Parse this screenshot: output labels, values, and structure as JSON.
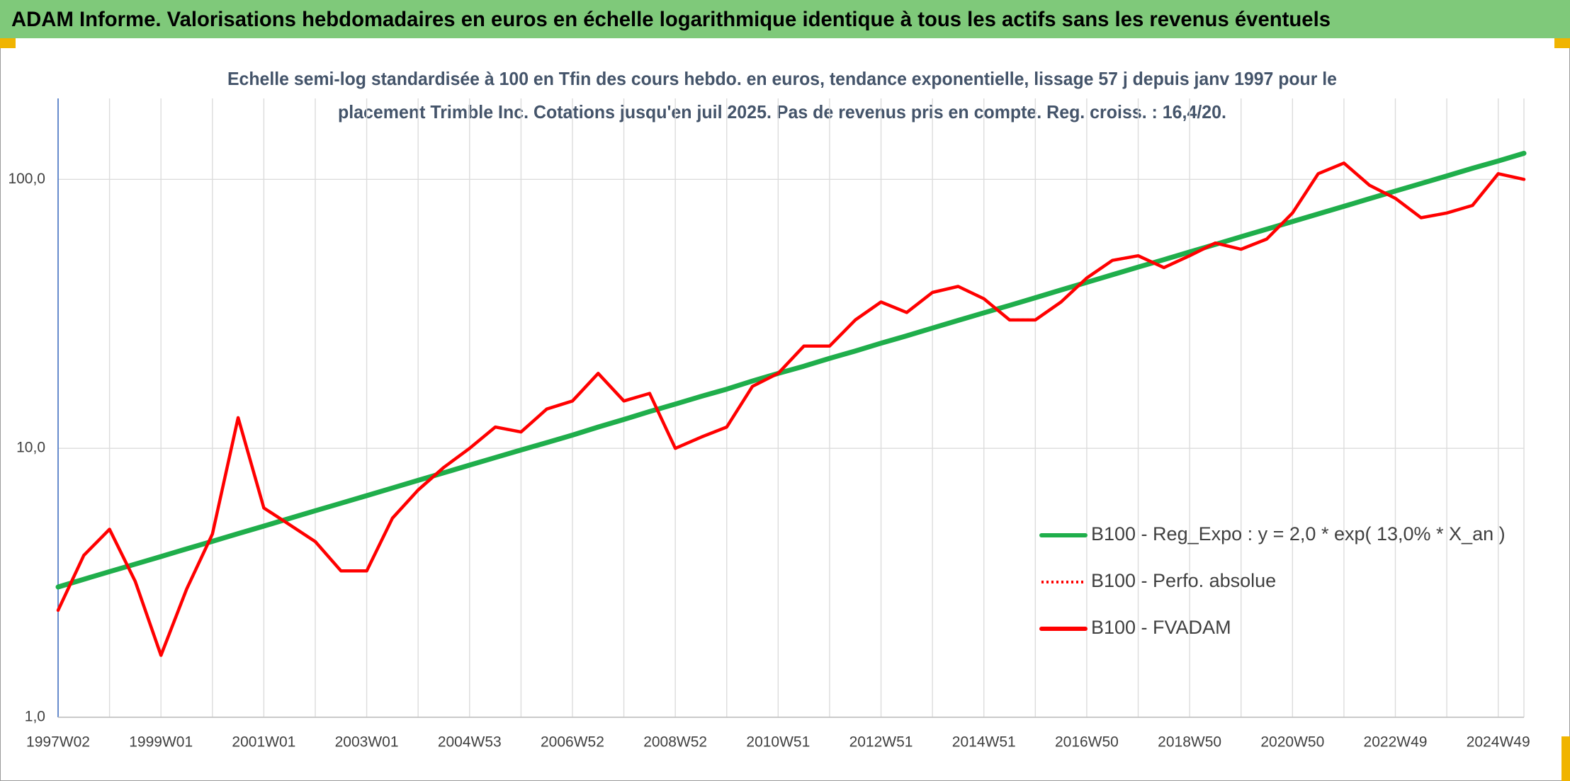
{
  "header": {
    "title": "ADAM Informe. Valorisations hebdomadaires en euros en échelle logarithmique identique à tous les actifs sans les revenus éventuels"
  },
  "chart_data": {
    "type": "line",
    "subtitle": [
      "Echelle semi-log standardisée à 100 en Tfin des cours hebdo. en euros, tendance exponentielle, lissage 57 j depuis janv 1997 pour le",
      "placement Trimble Inc. Cotations jusqu'en juil 2025. Pas de revenus pris en compte. Reg. croiss. : 16,4/20."
    ],
    "categories": [
      "1997W02",
      null,
      null,
      null,
      "1999W01",
      null,
      null,
      null,
      "2001W01",
      null,
      null,
      null,
      "2003W01",
      null,
      null,
      null,
      "2004W53",
      null,
      null,
      null,
      "2006W52",
      null,
      null,
      null,
      "2008W52",
      null,
      null,
      null,
      "2010W51",
      null,
      null,
      null,
      "2012W51",
      null,
      null,
      null,
      "2014W51",
      null,
      null,
      null,
      "2016W50",
      null,
      null,
      null,
      "2018W50",
      null,
      null,
      null,
      "2020W50",
      null,
      null,
      null,
      "2022W49",
      null,
      null,
      null,
      "2024W49",
      null
    ],
    "series": [
      {
        "name": "B100 - Reg_Expo : y = 2,0 * exp( 13,0% *  X_an )",
        "color": "#1fae4b",
        "style": "solid",
        "values": [
          3.05,
          3.26,
          3.48,
          3.71,
          3.96,
          4.23,
          4.51,
          4.82,
          5.14,
          5.49,
          5.86,
          6.25,
          6.67,
          7.12,
          7.6,
          8.11,
          8.66,
          9.24,
          9.86,
          10.5,
          11.2,
          12.0,
          12.8,
          13.7,
          14.6,
          15.6,
          16.6,
          17.8,
          19.0,
          20.2,
          21.6,
          23.0,
          24.6,
          26.2,
          28.0,
          29.9,
          31.9,
          34.0,
          36.3,
          38.8,
          41.4,
          44.2,
          47.2,
          50.3,
          53.7,
          57.3,
          61.2,
          65.3,
          69.7,
          74.4,
          79.4,
          84.8,
          90.5,
          96.5,
          103,
          110,
          117,
          125
        ]
      },
      {
        "name": "B100 - Perfo. absolue",
        "color": "#ff0000",
        "style": "dotted",
        "values": [
          2.5,
          4.0,
          5.0,
          3.2,
          1.7,
          3.0,
          4.8,
          13,
          6,
          5.2,
          4.5,
          3.5,
          3.5,
          5.5,
          7,
          8.5,
          10,
          12,
          11.5,
          14,
          15,
          19,
          15,
          16,
          10,
          11,
          12,
          17,
          19,
          24,
          24,
          30,
          35,
          32,
          38,
          40,
          36,
          30,
          30,
          35,
          43,
          50,
          52,
          47,
          52,
          58,
          55,
          60,
          75,
          105,
          115,
          95,
          85,
          72,
          75,
          80,
          105,
          100
        ]
      },
      {
        "name": "B100 - FVADAM",
        "color": "#ff0000",
        "style": "solid",
        "values": [
          2.5,
          4.0,
          5.0,
          3.2,
          1.7,
          3.0,
          4.8,
          13,
          6,
          5.2,
          4.5,
          3.5,
          3.5,
          5.5,
          7,
          8.5,
          10,
          12,
          11.5,
          14,
          15,
          19,
          15,
          16,
          10,
          11,
          12,
          17,
          19,
          24,
          24,
          30,
          35,
          32,
          38,
          40,
          36,
          30,
          30,
          35,
          43,
          50,
          52,
          47,
          52,
          58,
          55,
          60,
          75,
          105,
          115,
          95,
          85,
          72,
          75,
          80,
          105,
          100
        ]
      }
    ],
    "ylim": [
      1,
      200
    ],
    "yticks": [
      {
        "value": 1,
        "label": "1,0"
      },
      {
        "value": 10,
        "label": "10,0"
      },
      {
        "value": 100,
        "label": "100,0"
      }
    ],
    "log_scale": true,
    "grid": true,
    "legend": "lower right"
  }
}
